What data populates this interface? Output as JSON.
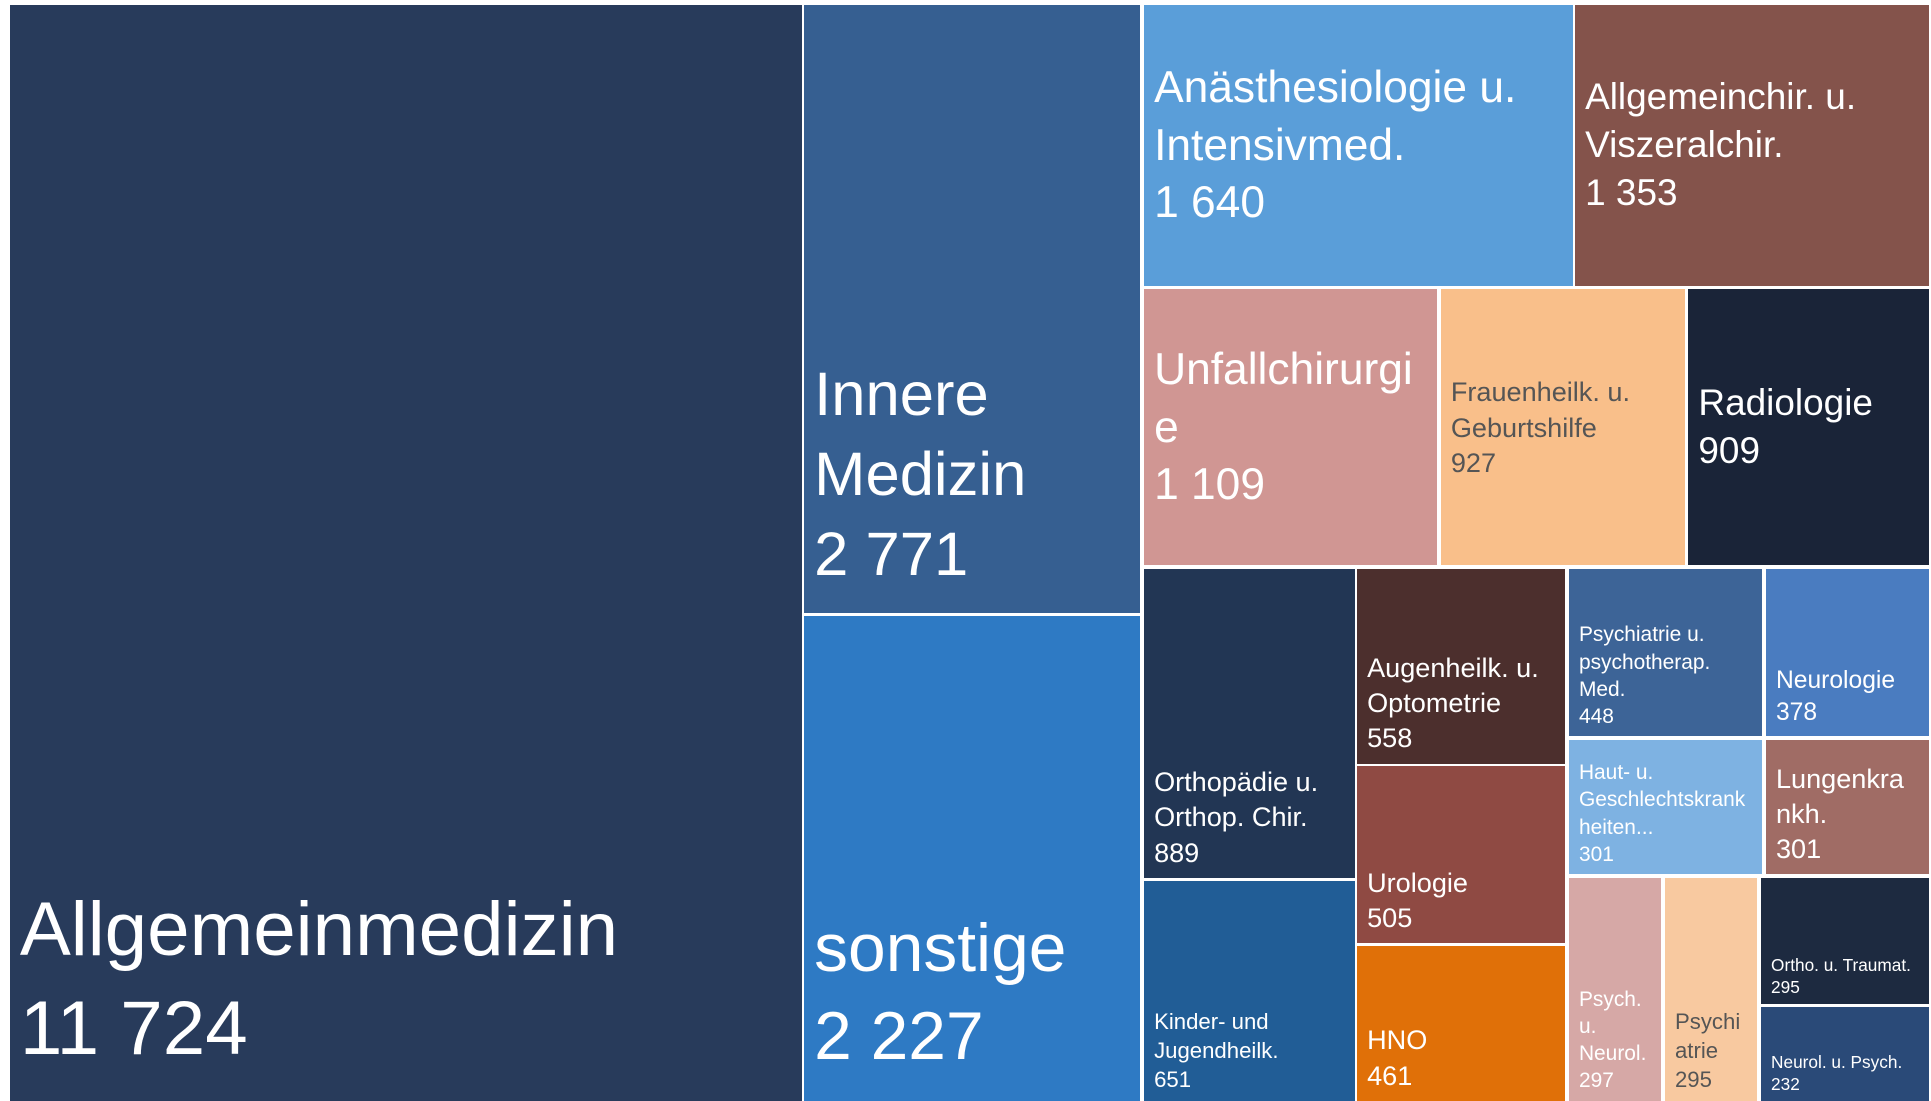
{
  "chart_data": {
    "type": "treemap",
    "categories": [
      "Allgemeinmedizin",
      "Innere Medizin",
      "sonstige",
      "Anästhesiologie u. Intensivmed.",
      "Allgemeinchir. u. Viszeralchir.",
      "Unfallchirurgie",
      "Frauenheilk. u. Geburtshilfe",
      "Radiologie",
      "Orthopädie u. Orthop. Chir.",
      "Kinder- und Jugendheilk.",
      "Augenheilk. u. Optometrie",
      "Urologie",
      "HNO",
      "Psychiatrie u. psychotherap. Med.",
      "Neurologie",
      "Haut- u. Geschlechtskrankheiten...",
      "Lungenkrankh.",
      "Psych. u. Neurol.",
      "Psychiatrie",
      "Ortho. u. Traumat.",
      "Neurol. u. Psych."
    ],
    "values": [
      11724,
      2771,
      2227,
      1640,
      1353,
      1109,
      927,
      909,
      889,
      651,
      558,
      505,
      461,
      448,
      378,
      301,
      301,
      297,
      295,
      295,
      232
    ],
    "value_labels": [
      "11 724",
      "2 771",
      "2 227",
      "1 640",
      "1 353",
      "1 109",
      "927",
      "909",
      "889",
      "651",
      "558",
      "505",
      "461",
      "448",
      "378",
      "301",
      "301",
      "297",
      "295",
      "295",
      "232"
    ],
    "colors": [
      "#283b5b",
      "#365f91",
      "#2e7ac4",
      "#5a9ed9",
      "#84534b",
      "#d09693",
      "#f9bf8a",
      "#1a2438",
      "#223654",
      "#215d96",
      "#4c2f2d",
      "#8f4a43",
      "#e07008",
      "#3d6497",
      "#4a7cc0",
      "#7eb2e2",
      "#a06c65",
      "#d6a8a6",
      "#f8c9a0",
      "#1d2a40",
      "#2a4a78"
    ]
  }
}
